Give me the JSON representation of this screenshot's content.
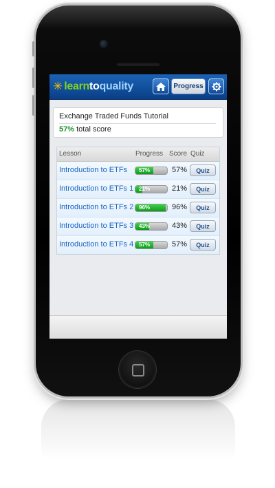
{
  "header": {
    "logo": {
      "icon": "sun-star-icon",
      "part1": "learn",
      "part2": "to",
      "part3": "quality"
    },
    "home_icon": "home-icon",
    "progress_label": "Progress",
    "settings_icon": "gear-icon",
    "bar_color": "#0a3f86"
  },
  "summary": {
    "title": "Exchange Traded Funds Tutorial",
    "score_pct": "57%",
    "score_text": "total score"
  },
  "table": {
    "headers": {
      "lesson": "Lesson",
      "progress": "Progress",
      "score": "Score",
      "quiz": "Quiz"
    },
    "rows": [
      {
        "lesson": "Introduction to ETFs",
        "progress": 0.57,
        "progress_label": "57%",
        "score": "57%",
        "quiz": "Quiz"
      },
      {
        "lesson": "Introduction to ETFs 1",
        "progress": 0.21,
        "progress_label": "21%",
        "score": "21%",
        "quiz": "Quiz"
      },
      {
        "lesson": "Introduction to ETFs 2",
        "progress": 0.96,
        "progress_label": "96%",
        "score": "96%",
        "quiz": "Quiz"
      },
      {
        "lesson": "Introduction to ETFs 3",
        "progress": 0.43,
        "progress_label": "43%",
        "score": "43%",
        "quiz": "Quiz"
      },
      {
        "lesson": "Introduction to ETFs 4",
        "progress": 0.57,
        "progress_label": "57%",
        "score": "57%",
        "quiz": "Quiz"
      }
    ]
  },
  "colors": {
    "accent": "#1a63c0",
    "progress_fill": "#19962a",
    "logo_green": "#7fd321",
    "logo_star": "#f5c400"
  }
}
